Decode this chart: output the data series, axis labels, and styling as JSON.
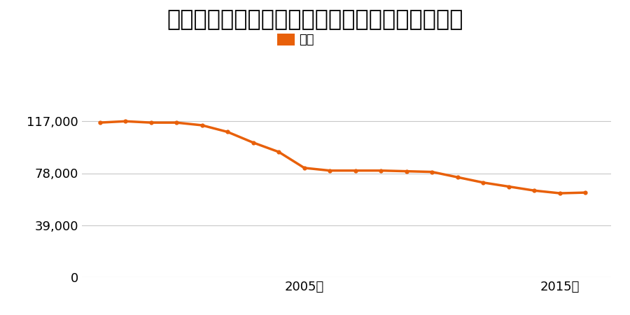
{
  "title": "鳥取県鳥取市雲山字中沢１３７番１８の地価推移",
  "legend_label": "価格",
  "years": [
    1997,
    1998,
    1999,
    2000,
    2001,
    2002,
    2003,
    2004,
    2005,
    2006,
    2007,
    2008,
    2009,
    2010,
    2011,
    2012,
    2013,
    2014,
    2015,
    2016
  ],
  "values": [
    116000,
    117000,
    116000,
    116000,
    114000,
    109000,
    101000,
    94000,
    82000,
    80000,
    80000,
    80000,
    79500,
    79000,
    75000,
    71000,
    68000,
    65000,
    63000,
    63500
  ],
  "line_color": "#e8600a",
  "marker_color": "#e8600a",
  "bg_color": "#ffffff",
  "grid_color": "#c8c8c8",
  "yticks": [
    0,
    39000,
    78000,
    117000
  ],
  "xtick_years": [
    2005,
    2015
  ],
  "ylim": [
    0,
    130000
  ],
  "xlim_start": 1996.3,
  "xlim_end": 2017.0,
  "title_fontsize": 23,
  "tick_fontsize": 13,
  "legend_fontsize": 13
}
